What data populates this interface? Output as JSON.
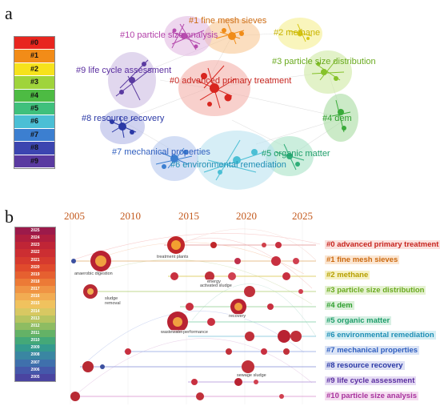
{
  "panel_a_label": "a",
  "panel_b_label": "b",
  "legend_a": [
    {
      "text": "#0",
      "color": "#e8261f"
    },
    {
      "text": "#1",
      "color": "#f28c18"
    },
    {
      "text": "#2",
      "color": "#f6e21c"
    },
    {
      "text": "#3",
      "color": "#9fd43b"
    },
    {
      "text": "#4",
      "color": "#4dbb43"
    },
    {
      "text": "#5",
      "color": "#3fc07c"
    },
    {
      "text": "#6",
      "color": "#4bbfd5"
    },
    {
      "text": "#7",
      "color": "#3c7fd0"
    },
    {
      "text": "#8",
      "color": "#3c45b0"
    },
    {
      "text": "#9",
      "color": "#5a3aa0"
    }
  ],
  "clusters_a": [
    {
      "text": "#1 fine mesh sieves",
      "color": "#cc6a10"
    },
    {
      "text": "#10 particle size analysis",
      "color": "#b23fa8"
    },
    {
      "text": "#2 methane",
      "color": "#c9b400"
    },
    {
      "text": "#9 life cycle assessment",
      "color": "#5b2fa0"
    },
    {
      "text": "#3 particle size distribution",
      "color": "#6aaa1f"
    },
    {
      "text": "#0 advanced primary treatment",
      "color": "#c7251f"
    },
    {
      "text": "#4 dem",
      "color": "#2e9f2e"
    },
    {
      "text": "#8 resource recovery",
      "color": "#2b39a6"
    },
    {
      "text": "#7 mechanical properties",
      "color": "#2f5ebf"
    },
    {
      "text": "#5 organic matter",
      "color": "#1f9e6a"
    },
    {
      "text": "#6 environmental remediation",
      "color": "#1f8fb5"
    }
  ],
  "timeline_years": [
    "2005",
    "2010",
    "2015",
    "2020",
    "2025"
  ],
  "legend_b_years": [
    "2025",
    "2024",
    "2023",
    "2022",
    "2021",
    "2020",
    "2019",
    "2018",
    "2017",
    "2016",
    "2015",
    "2014",
    "2013",
    "2012",
    "2011",
    "2010",
    "2009",
    "2008",
    "2007",
    "2006",
    "2005"
  ],
  "timeline_clusters": [
    {
      "text": "#0 advanced primary treatment",
      "color": "#c7251f"
    },
    {
      "text": "#1 fine mesh sieves",
      "color": "#cc6a10"
    },
    {
      "text": "#2 methane",
      "color": "#b7a000"
    },
    {
      "text": "#3 particle size distribution",
      "color": "#6aaa1f"
    },
    {
      "text": "#4 dem",
      "color": "#2e9f2e"
    },
    {
      "text": "#5 organic matter",
      "color": "#1f9e6a"
    },
    {
      "text": "#6 environmental remediation",
      "color": "#1f8fb5"
    },
    {
      "text": "#7 mechanical properties",
      "color": "#2f5ebf"
    },
    {
      "text": "#8 resource recovery",
      "color": "#2b39a6"
    },
    {
      "text": "#9 life cycle assessment",
      "color": "#5b2fa0"
    },
    {
      "text": "#10 particle size analysis",
      "color": "#a8329d"
    }
  ],
  "node_notes": [
    "treatment plants",
    "anaerobic digestion",
    "energy",
    "activated sludge",
    "sludge",
    "removal",
    "recovery",
    "wastewater",
    "performance",
    "sewage sludge"
  ]
}
